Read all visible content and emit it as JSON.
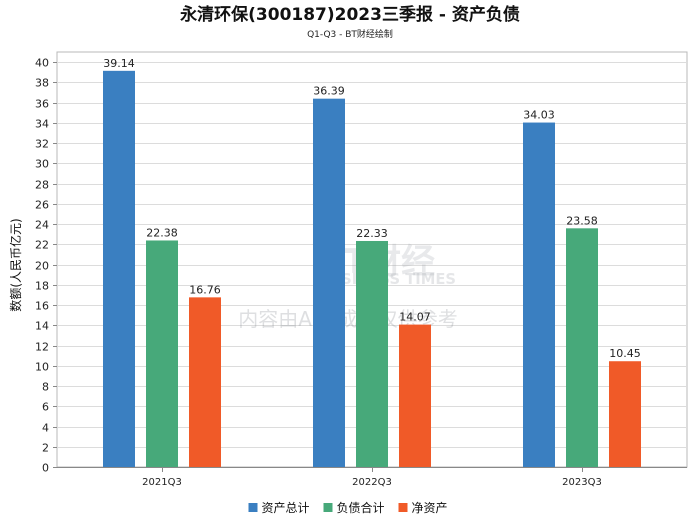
{
  "chart_data": {
    "type": "bar",
    "title": "永清环保(300187)2023三季报 - 资产负债",
    "subtitle": "Q1-Q3 - BT财经绘制",
    "ylabel": "数额(人民币亿元)",
    "xlabel": "",
    "ylim": [
      0,
      41
    ],
    "yticks": [
      0,
      2,
      4,
      6,
      8,
      10,
      12,
      14,
      16,
      18,
      20,
      22,
      24,
      26,
      28,
      30,
      32,
      34,
      36,
      38,
      40
    ],
    "grid": true,
    "legend_position": "bottom",
    "categories": [
      "2021Q3",
      "2022Q3",
      "2023Q3"
    ],
    "series": [
      {
        "name": "资产总计",
        "color": "#3a7fc1",
        "values": [
          39.14,
          36.39,
          34.03
        ]
      },
      {
        "name": "负债合计",
        "color": "#47a97a",
        "values": [
          22.38,
          22.33,
          23.58
        ]
      },
      {
        "name": "净资产",
        "color": "#f05a28",
        "values": [
          16.76,
          14.07,
          10.45
        ]
      }
    ]
  },
  "watermark": {
    "brand": "BT财经",
    "brand_en": "BUSINESS TIMES",
    "note": "内容由AI生成，仅供参考"
  }
}
